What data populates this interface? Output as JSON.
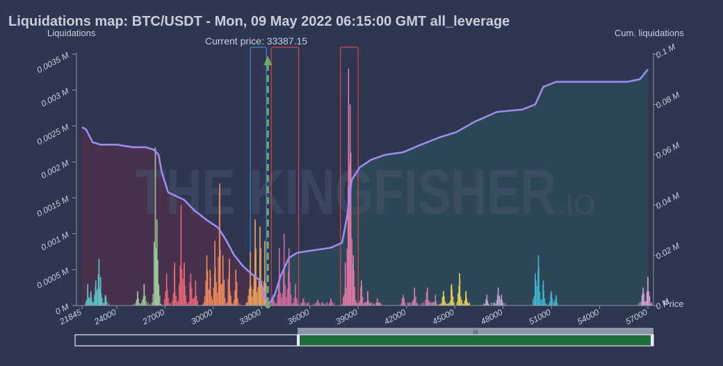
{
  "title": "Liquidations map: BTC/USDT - Mon, 09 May 2022 06:15:00 GMT all_leverage",
  "watermark": {
    "main": "THE KINGFISHER",
    "suffix": ".IO"
  },
  "current_price_label": "Current price: 33387.15",
  "zoom_handle_label": "III",
  "colors": {
    "background": "#2e3650",
    "cumulative_line": "#9d8df0",
    "current_price_line": "#6fa86a",
    "highlight_blue": "#3b8bd6",
    "highlight_red": "#d64550",
    "zoom_fill": "#1e6e3a"
  },
  "chart_data": {
    "type": "bar",
    "xlabel": "Price",
    "ylabel_left": "Liquidations",
    "ylabel_right": "Cum. liquidations",
    "xlim": [
      21845,
      57000
    ],
    "x_ticks": [
      "21845",
      "24000",
      "27000",
      "30000",
      "33000",
      "36000",
      "39000",
      "42000",
      "45000",
      "48000",
      "51000",
      "54000",
      "57000"
    ],
    "ylim_left": [
      0,
      0.0035
    ],
    "y_ticks_left": [
      "0 M",
      "0.0005 M",
      "0.001 M",
      "0.0015 M",
      "0.002 M",
      "0.0025 M",
      "0.003 M",
      "0.0035 M"
    ],
    "ylim_right": [
      0,
      0.1
    ],
    "y_ticks_right": [
      "0 M",
      "0.02 M",
      "0.04 M",
      "0.06 M",
      "0.08 M",
      "0.1 M"
    ],
    "current_price": 33387.15,
    "highlights": [
      {
        "color": "blue",
        "x_range": [
          32300,
          33300
        ]
      },
      {
        "color": "red",
        "x_range": [
          33600,
          35300
        ]
      },
      {
        "color": "red",
        "x_range": [
          37900,
          39000
        ]
      }
    ],
    "bar_clusters": [
      {
        "color": "#5ec6c9",
        "peaks": [
          [
            22200,
            0.0003
          ],
          [
            22400,
            0.0002
          ],
          [
            22700,
            0.00035
          ],
          [
            22900,
            0.00065
          ],
          [
            23000,
            0.0004
          ],
          [
            23300,
            0.00015
          ]
        ]
      },
      {
        "color": "#9fc99b",
        "peaks": [
          [
            25300,
            0.0002
          ],
          [
            25700,
            0.0003
          ],
          [
            26400,
            0.0022
          ],
          [
            26500,
            0.0012
          ],
          [
            26600,
            0.0003
          ]
        ]
      },
      {
        "color": "#e86477",
        "peaks": [
          [
            27100,
            0.00045
          ],
          [
            27600,
            0.0006
          ],
          [
            28000,
            0.0014
          ],
          [
            28200,
            0.0006
          ],
          [
            28600,
            0.00045
          ],
          [
            28900,
            0.00035
          ]
        ]
      },
      {
        "color": "#f08a5d",
        "peaks": [
          [
            29600,
            0.0007
          ],
          [
            29800,
            0.0005
          ],
          [
            30100,
            0.0009
          ],
          [
            30400,
            0.0017
          ],
          [
            30600,
            0.0007
          ],
          [
            31000,
            0.00065
          ],
          [
            31400,
            0.0005
          ]
        ]
      },
      {
        "color": "#f0a35d",
        "peaks": [
          [
            32300,
            0.00075
          ],
          [
            32600,
            0.0012
          ],
          [
            32900,
            0.0011
          ],
          [
            33200,
            0.0009
          ]
        ]
      },
      {
        "color": "#d66aa0",
        "peaks": [
          [
            33700,
            0.00015
          ],
          [
            34100,
            0.0008
          ],
          [
            34400,
            0.001
          ],
          [
            34700,
            0.0008
          ],
          [
            35100,
            0.0003
          ],
          [
            35600,
            0.0001
          ],
          [
            36500,
            8e-05
          ],
          [
            37300,
            0.0001
          ]
        ]
      },
      {
        "color": "#e07aa7",
        "peaks": [
          [
            38200,
            0.0006
          ],
          [
            38400,
            0.0033
          ],
          [
            38500,
            0.0028
          ],
          [
            38700,
            0.0007
          ],
          [
            39200,
            0.00035
          ],
          [
            39600,
            0.0002
          ],
          [
            40200,
            0.0001
          ]
        ]
      },
      {
        "color": "#d47bb5",
        "peaks": [
          [
            41800,
            0.00015
          ],
          [
            42500,
            0.00025
          ],
          [
            43300,
            0.00025
          ],
          [
            43800,
            0.00015
          ]
        ]
      },
      {
        "color": "#e9d35b",
        "peaks": [
          [
            44300,
            0.0002
          ],
          [
            44800,
            0.0003
          ],
          [
            45300,
            0.00045
          ],
          [
            45700,
            0.0002
          ]
        ]
      },
      {
        "color": "#c7a6d6",
        "peaks": [
          [
            47000,
            0.00015
          ],
          [
            47700,
            0.00025
          ],
          [
            47900,
            0.00015
          ]
        ]
      },
      {
        "color": "#3fb6d3",
        "peaks": [
          [
            50000,
            0.00045
          ],
          [
            50200,
            0.0007
          ],
          [
            50500,
            0.00035
          ],
          [
            51000,
            0.0002
          ],
          [
            51300,
            0.00015
          ]
        ]
      },
      {
        "color": "#d9a3d9",
        "peaks": [
          [
            56700,
            0.00025
          ],
          [
            57000,
            0.0004
          ]
        ]
      }
    ],
    "cumulative_line": [
      [
        21845,
        0.071
      ],
      [
        22100,
        0.07
      ],
      [
        22500,
        0.065
      ],
      [
        23000,
        0.064
      ],
      [
        24000,
        0.064
      ],
      [
        25000,
        0.063
      ],
      [
        25800,
        0.063
      ],
      [
        26300,
        0.062
      ],
      [
        26600,
        0.06
      ],
      [
        26800,
        0.053
      ],
      [
        27200,
        0.045
      ],
      [
        28200,
        0.042
      ],
      [
        28800,
        0.038
      ],
      [
        29600,
        0.034
      ],
      [
        30300,
        0.031
      ],
      [
        30800,
        0.026
      ],
      [
        31300,
        0.02
      ],
      [
        31800,
        0.016
      ],
      [
        32300,
        0.013
      ],
      [
        32900,
        0.01
      ],
      [
        33387,
        0.0
      ],
      [
        33800,
        0.004
      ],
      [
        34200,
        0.012
      ],
      [
        34700,
        0.019
      ],
      [
        35200,
        0.021
      ],
      [
        36200,
        0.022
      ],
      [
        37300,
        0.023
      ],
      [
        38000,
        0.025
      ],
      [
        38300,
        0.035
      ],
      [
        38600,
        0.05
      ],
      [
        39100,
        0.055
      ],
      [
        39800,
        0.058
      ],
      [
        40700,
        0.06
      ],
      [
        41800,
        0.061
      ],
      [
        42900,
        0.064
      ],
      [
        44100,
        0.067
      ],
      [
        45100,
        0.069
      ],
      [
        46200,
        0.073
      ],
      [
        47600,
        0.077
      ],
      [
        49200,
        0.078
      ],
      [
        50000,
        0.08
      ],
      [
        50500,
        0.087
      ],
      [
        51300,
        0.089
      ],
      [
        53500,
        0.089
      ],
      [
        55700,
        0.089
      ],
      [
        56500,
        0.09
      ],
      [
        57000,
        0.094
      ]
    ],
    "zoom_range": [
      0,
      1
    ]
  }
}
